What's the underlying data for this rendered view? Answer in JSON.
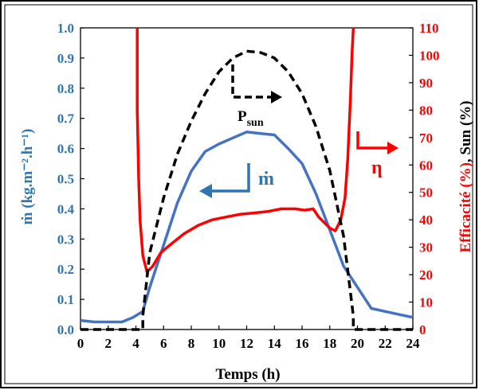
{
  "chart_data": {
    "type": "line",
    "xlabel": "Temps (h)",
    "ylabel_left": "ṁ (kg.m⁻².h⁻¹)",
    "ylabel_right_part1": "Efficacité (%)",
    "ylabel_right_part2": ", Sun (%)",
    "xlim": [
      0,
      24
    ],
    "ylim_left": [
      0,
      1.0
    ],
    "ylim_right": [
      0,
      110
    ],
    "x_ticks": [
      "0",
      "2",
      "4",
      "6",
      "8",
      "10",
      "12",
      "14",
      "16",
      "18",
      "20",
      "22",
      "24"
    ],
    "y_left_ticks": [
      "0.0",
      "0.1",
      "0.2",
      "0.3",
      "0.4",
      "0.5",
      "0.6",
      "0.7",
      "0.8",
      "0.9",
      "1.0"
    ],
    "y_right_ticks": [
      "0",
      "10",
      "20",
      "30",
      "40",
      "50",
      "60",
      "70",
      "80",
      "90",
      "100",
      "110"
    ],
    "grid": false,
    "series": [
      {
        "name": "ṁ",
        "axis": "left",
        "color": "#4472c4",
        "style": "solid",
        "x": [
          0,
          1,
          2,
          3,
          3.8,
          4.5,
          5,
          6,
          7,
          8,
          9,
          10,
          11,
          12,
          13,
          14,
          15,
          16,
          17,
          18,
          19,
          20,
          21,
          22,
          23,
          24
        ],
        "y": [
          0.03,
          0.025,
          0.025,
          0.025,
          0.04,
          0.06,
          0.14,
          0.28,
          0.42,
          0.525,
          0.59,
          0.615,
          0.635,
          0.655,
          0.65,
          0.645,
          0.6,
          0.55,
          0.45,
          0.33,
          0.21,
          0.14,
          0.07,
          0.06,
          0.05,
          0.04
        ]
      },
      {
        "name": "η",
        "axis": "right",
        "color": "#ff0000",
        "style": "solid",
        "x": [
          4.1,
          4.1,
          4.2,
          4.3,
          4.5,
          4.8,
          5.2,
          5.8,
          6.5,
          7.5,
          8.5,
          9.5,
          10.5,
          11.5,
          12.5,
          13.5,
          14.5,
          15.5,
          16.2,
          16.8,
          17.2,
          17.6,
          18.0,
          18.4,
          18.8,
          19.1,
          19.3,
          19.5,
          19.6,
          19.7
        ],
        "y": [
          110,
          80,
          55,
          40,
          27,
          21,
          23,
          28,
          31,
          35,
          38,
          40,
          41,
          42,
          42.5,
          43,
          44,
          44,
          43.5,
          44,
          41,
          39,
          37,
          36,
          40,
          48,
          62,
          85,
          100,
          110
        ]
      },
      {
        "name": "Psun",
        "axis": "right",
        "color": "#000000",
        "style": "dashed",
        "x": [
          0,
          4.5,
          4.5,
          5,
          6,
          7,
          8,
          9,
          10,
          11,
          12,
          13,
          14,
          15,
          16,
          17,
          18,
          19,
          19.7,
          19.7,
          24
        ],
        "y": [
          0,
          0,
          5,
          28,
          48,
          64,
          76,
          86,
          94,
          99,
          101.5,
          101,
          99,
          94,
          86,
          74,
          58,
          34,
          5,
          0,
          0
        ]
      }
    ],
    "annotations": {
      "mdot_label": "ṁ",
      "eta_label": "η",
      "psun_label": "P",
      "psun_sub": "sun"
    }
  }
}
